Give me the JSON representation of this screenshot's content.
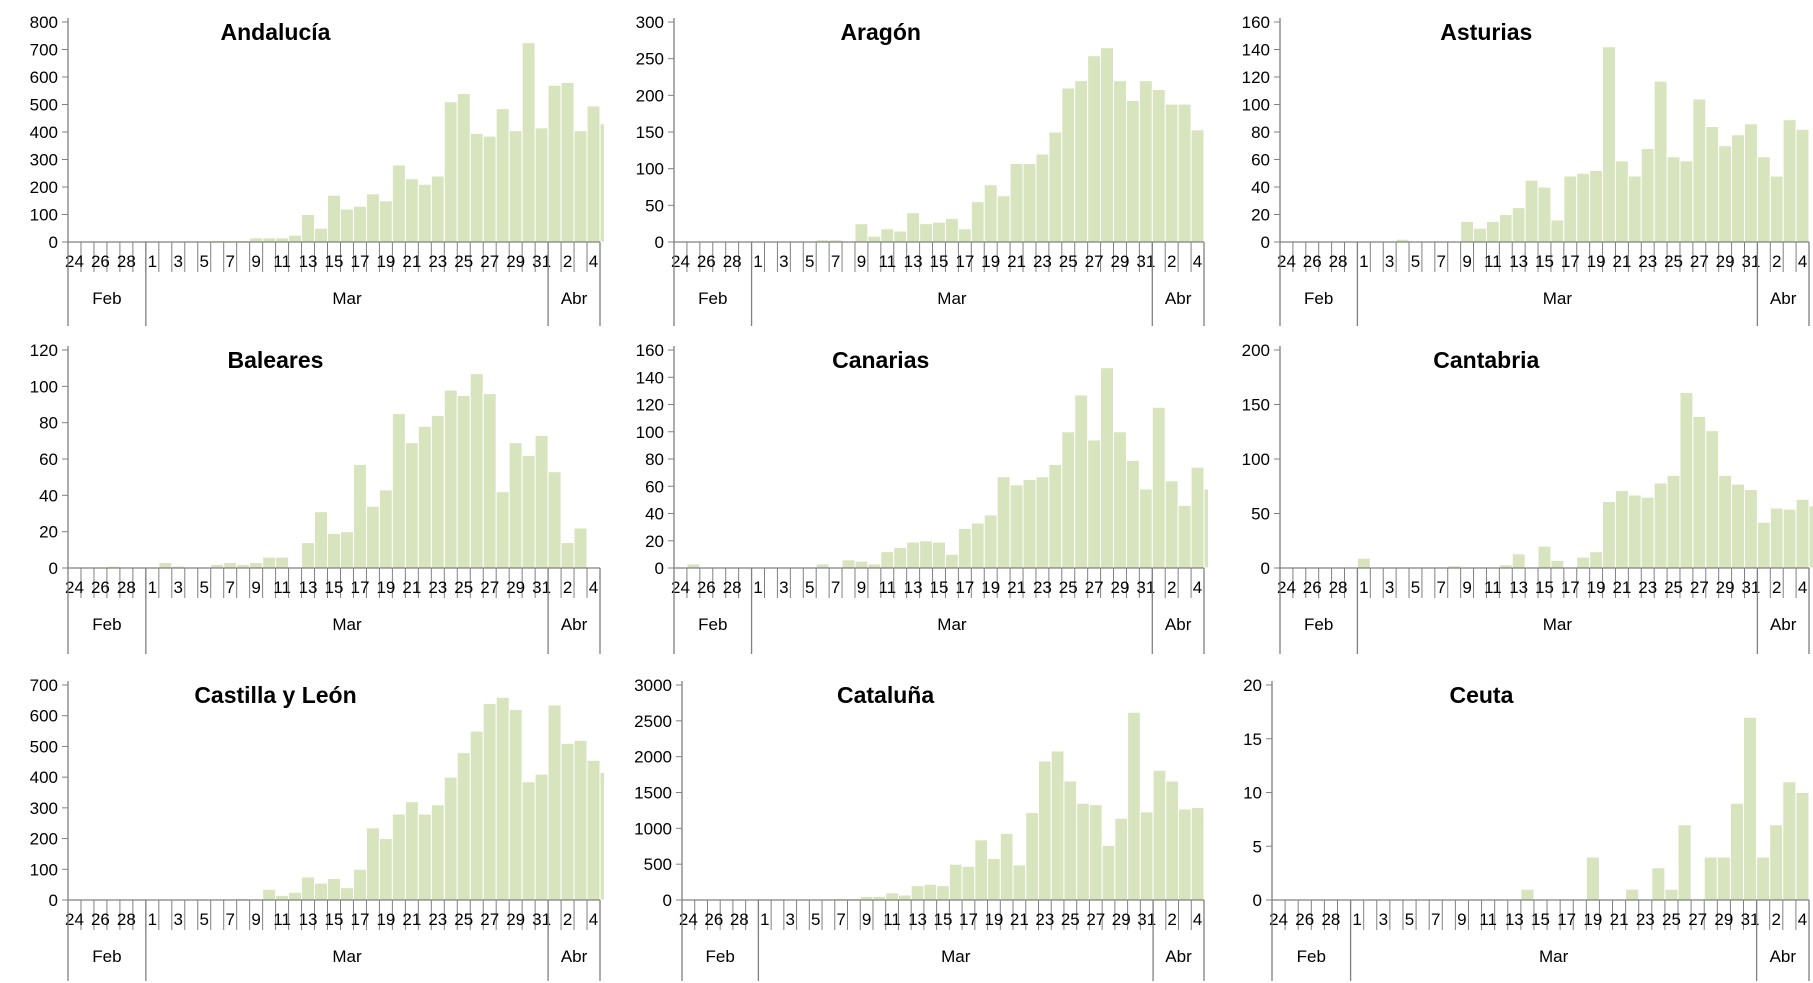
{
  "style": {
    "bar_color": "#d7e4bd",
    "bar_stroke": "#ffffff",
    "axis_color": "#808080"
  },
  "shared": {
    "date_tick_labels": [
      "24",
      "",
      "26",
      "",
      "28",
      "",
      "1",
      "",
      "3",
      "",
      "5",
      "",
      "7",
      "",
      "9",
      "",
      "11",
      "",
      "13",
      "",
      "15",
      "",
      "17",
      "",
      "19",
      "",
      "21",
      "",
      "23",
      "",
      "25",
      "",
      "27",
      "",
      "29",
      "",
      "31",
      "",
      "2",
      "",
      "4"
    ],
    "month_groups": [
      {
        "label": "Feb",
        "days": 6
      },
      {
        "label": "Mar",
        "days": 31
      },
      {
        "label": "Abr",
        "days": 4
      }
    ]
  },
  "chart_data": [
    {
      "type": "bar",
      "title": "Andalucía",
      "ylim": [
        0,
        800
      ],
      "yticks": [
        0,
        100,
        200,
        300,
        400,
        500,
        600,
        700,
        800
      ],
      "values": [
        0,
        0,
        0,
        0,
        0,
        0,
        0,
        0,
        0,
        0,
        0,
        5,
        5,
        5,
        15,
        15,
        15,
        25,
        100,
        50,
        170,
        120,
        130,
        175,
        150,
        280,
        230,
        210,
        240,
        510,
        540,
        395,
        385,
        485,
        405,
        725,
        415,
        570,
        580,
        405,
        495,
        430
      ]
    },
    {
      "type": "bar",
      "title": "Aragón",
      "ylim": [
        0,
        300
      ],
      "yticks": [
        0,
        50,
        100,
        150,
        200,
        250,
        300
      ],
      "values": [
        0,
        0,
        0,
        0,
        0,
        0,
        0,
        0,
        0,
        0,
        0,
        3,
        3,
        0,
        25,
        8,
        18,
        15,
        40,
        25,
        27,
        32,
        18,
        55,
        78,
        63,
        107,
        107,
        120,
        150,
        210,
        220,
        254,
        265,
        220,
        193,
        220,
        208,
        188,
        188,
        153
      ]
    },
    {
      "type": "bar",
      "title": "Asturias",
      "ylim": [
        0,
        160
      ],
      "yticks": [
        0,
        20,
        40,
        60,
        80,
        100,
        120,
        140,
        160
      ],
      "values": [
        0,
        0,
        0,
        0,
        0,
        0,
        0,
        0,
        0,
        2,
        0,
        0,
        0,
        0,
        15,
        10,
        15,
        20,
        25,
        45,
        40,
        16,
        48,
        50,
        52,
        142,
        59,
        48,
        68,
        117,
        62,
        59,
        104,
        84,
        70,
        78,
        86,
        62,
        48,
        89,
        82
      ]
    },
    {
      "type": "bar",
      "title": "Baleares",
      "ylim": [
        0,
        120
      ],
      "yticks": [
        0,
        20,
        40,
        60,
        80,
        100,
        120
      ],
      "values": [
        0,
        0,
        0,
        1,
        0,
        0,
        0,
        3,
        1,
        0,
        0,
        2,
        3,
        2,
        3,
        6,
        6,
        0,
        14,
        31,
        19,
        20,
        57,
        34,
        43,
        85,
        69,
        78,
        84,
        98,
        95,
        107,
        96,
        42,
        69,
        62,
        73,
        53,
        14,
        22
      ]
    },
    {
      "type": "bar",
      "title": "Canarias",
      "ylim": [
        0,
        160
      ],
      "yticks": [
        0,
        20,
        40,
        60,
        80,
        100,
        120,
        140,
        160
      ],
      "values": [
        0,
        3,
        0,
        0,
        0,
        0,
        0,
        0,
        0,
        0,
        0,
        3,
        0,
        6,
        5,
        3,
        12,
        15,
        19,
        20,
        19,
        10,
        29,
        33,
        39,
        67,
        61,
        65,
        67,
        76,
        100,
        127,
        94,
        147,
        100,
        79,
        58,
        118,
        64,
        46,
        74,
        58
      ]
    },
    {
      "type": "bar",
      "title": "Cantabria",
      "ylim": [
        0,
        200
      ],
      "yticks": [
        0,
        50,
        100,
        150,
        200
      ],
      "values": [
        0,
        0,
        0,
        0,
        0,
        0,
        9,
        0,
        0,
        0,
        0,
        0,
        0,
        2,
        0,
        0,
        0,
        3,
        13,
        0,
        20,
        7,
        0,
        10,
        15,
        61,
        71,
        67,
        65,
        78,
        85,
        161,
        139,
        126,
        85,
        77,
        72,
        42,
        55,
        54,
        63,
        57
      ]
    },
    {
      "type": "bar",
      "title": "Castilla y León",
      "ylim": [
        0,
        700
      ],
      "yticks": [
        0,
        100,
        200,
        300,
        400,
        500,
        600,
        700
      ],
      "values": [
        0,
        0,
        0,
        0,
        0,
        0,
        0,
        0,
        0,
        0,
        0,
        0,
        0,
        5,
        0,
        35,
        15,
        25,
        75,
        55,
        70,
        40,
        100,
        235,
        200,
        280,
        320,
        280,
        310,
        400,
        480,
        550,
        640,
        660,
        620,
        385,
        410,
        635,
        510,
        520,
        455,
        415
      ]
    },
    {
      "type": "bar",
      "title": "Cataluña",
      "ylim": [
        0,
        3000
      ],
      "yticks": [
        0,
        500,
        1000,
        1500,
        2000,
        2500,
        3000
      ],
      "values": [
        0,
        0,
        0,
        0,
        0,
        0,
        0,
        0,
        0,
        0,
        0,
        0,
        20,
        20,
        50,
        50,
        100,
        70,
        200,
        220,
        200,
        500,
        470,
        840,
        580,
        930,
        490,
        1220,
        1940,
        2080,
        1660,
        1350,
        1330,
        760,
        1140,
        2620,
        1230,
        1810,
        1660,
        1270,
        1290
      ]
    },
    {
      "type": "bar",
      "title": "Ceuta",
      "ylim": [
        0,
        20
      ],
      "yticks": [
        0,
        5,
        10,
        15,
        20
      ],
      "values": [
        0,
        0,
        0,
        0,
        0,
        0,
        0,
        0,
        0,
        0,
        0,
        0,
        0,
        0,
        0,
        0,
        0,
        0,
        0,
        1,
        0,
        0,
        0,
        0,
        4,
        0,
        0,
        1,
        0,
        3,
        1,
        7,
        0,
        4,
        4,
        9,
        17,
        4,
        7,
        11,
        10
      ]
    }
  ]
}
